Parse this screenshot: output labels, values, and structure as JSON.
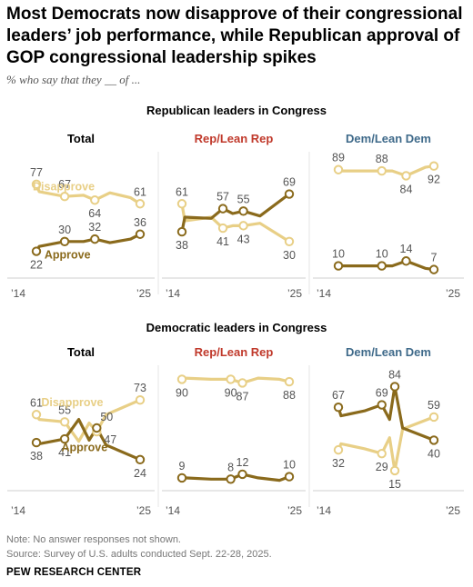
{
  "title": "Most Democrats now disapprove of their congressional leaders’ job performance, while Republican approval of GOP congressional leadership spikes",
  "subtitle": "% who say that they __ of ...",
  "note": "Note: No answer responses not shown.",
  "source": "Source: Survey of U.S. adults conducted Sept. 22-28, 2025.",
  "org": "PEW RESEARCH CENTER",
  "colors": {
    "disapprove": "#E8CF86",
    "approve": "#8A6A1C",
    "rep": "#C0392B",
    "dem": "#3F6A8A",
    "grid": "#CFCFCF"
  },
  "chart_data": [
    {
      "section": "Republican leaders in Congress",
      "panels": [
        {
          "title": "Total",
          "title_color": "#000000",
          "x_labels": [
            "’14",
            "’25"
          ],
          "series": [
            {
              "name": "Disapprove",
              "x": [
                2014,
                2014.3,
                2017,
                2019,
                2020.2,
                2021.8,
                2024,
                2025
              ],
              "values": [
                77,
                71,
                67,
                68,
                64,
                70,
                66,
                61
              ],
              "labeled_points": [
                {
                  "x": 2014,
                  "y": 77,
                  "label": "77",
                  "pos": "above"
                },
                {
                  "x": 2017,
                  "y": 67,
                  "label": "67",
                  "pos": "above"
                },
                {
                  "x": 2020.2,
                  "y": 64,
                  "label": "64",
                  "pos": "below"
                },
                {
                  "x": 2025,
                  "y": 61,
                  "label": "61",
                  "pos": "above"
                }
              ]
            },
            {
              "name": "Approve",
              "x": [
                2014,
                2014.3,
                2017,
                2019,
                2020.2,
                2021.8,
                2024,
                2025
              ],
              "values": [
                22,
                26,
                30,
                30,
                32,
                29,
                32,
                36
              ],
              "labeled_points": [
                {
                  "x": 2014,
                  "y": 22,
                  "label": "22",
                  "pos": "below"
                },
                {
                  "x": 2017,
                  "y": 30,
                  "label": "30",
                  "pos": "above"
                },
                {
                  "x": 2020.2,
                  "y": 32,
                  "label": "32",
                  "pos": "above"
                },
                {
                  "x": 2025,
                  "y": 36,
                  "label": "36",
                  "pos": "above"
                }
              ]
            }
          ],
          "inline_labels": [
            {
              "text": "Disapprove",
              "series": "Disapprove",
              "x": 2016.9,
              "y": 72
            },
            {
              "text": "Approve",
              "series": "Approve",
              "x": 2017.3,
              "y": 16
            }
          ]
        },
        {
          "title": "Rep/Lean Rep",
          "title_color": "#C0392B",
          "x_labels": [
            "’14",
            "’25"
          ],
          "series": [
            {
              "name": "Disapprove",
              "x": [
                2014,
                2014.3,
                2017,
                2018.2,
                2019.2,
                2020.3,
                2022,
                2025
              ],
              "values": [
                61,
                47,
                50,
                41,
                43,
                43,
                45,
                30
              ],
              "labeled_points": [
                {
                  "x": 2014,
                  "y": 61,
                  "label": "61",
                  "pos": "above"
                },
                {
                  "x": 2018.2,
                  "y": 41,
                  "label": "41",
                  "pos": "below"
                },
                {
                  "x": 2020.3,
                  "y": 43,
                  "label": "43",
                  "pos": "below"
                },
                {
                  "x": 2025,
                  "y": 30,
                  "label": "30",
                  "pos": "below"
                }
              ]
            },
            {
              "name": "Approve",
              "x": [
                2014,
                2014.3,
                2017,
                2018.2,
                2019.2,
                2020.3,
                2022,
                2025
              ],
              "values": [
                38,
                50,
                49,
                57,
                53,
                55,
                51,
                69
              ],
              "labeled_points": [
                {
                  "x": 2014,
                  "y": 38,
                  "label": "38",
                  "pos": "below"
                },
                {
                  "x": 2018.2,
                  "y": 57,
                  "label": "57",
                  "pos": "above"
                },
                {
                  "x": 2020.3,
                  "y": 55,
                  "label": "55",
                  "pos": "above"
                },
                {
                  "x": 2025,
                  "y": 69,
                  "label": "69",
                  "pos": "above"
                }
              ]
            }
          ]
        },
        {
          "title": "Dem/Lean Dem",
          "title_color": "#3F6A8A",
          "x_labels": [
            "’14",
            "’25"
          ],
          "series": [
            {
              "name": "Disapprove",
              "x": [
                2014,
                2014.3,
                2017,
                2019,
                2020.2,
                2021.8,
                2024,
                2025
              ],
              "values": [
                89,
                88,
                88,
                88,
                88,
                84,
                91,
                92
              ],
              "labeled_points": [
                {
                  "x": 2014,
                  "y": 89,
                  "label": "89",
                  "pos": "above"
                },
                {
                  "x": 2019,
                  "y": 88,
                  "label": "88",
                  "pos": "above"
                },
                {
                  "x": 2021.8,
                  "y": 84,
                  "label": "84",
                  "pos": "below"
                },
                {
                  "x": 2025,
                  "y": 92,
                  "label": "92",
                  "pos": "below"
                }
              ]
            },
            {
              "name": "Approve",
              "x": [
                2014,
                2014.3,
                2017,
                2019,
                2020.2,
                2021.8,
                2024,
                2025
              ],
              "values": [
                10,
                10,
                10,
                10,
                10,
                14,
                8,
                7
              ],
              "labeled_points": [
                {
                  "x": 2014,
                  "y": 10,
                  "label": "10",
                  "pos": "above"
                },
                {
                  "x": 2019,
                  "y": 10,
                  "label": "10",
                  "pos": "above"
                },
                {
                  "x": 2021.8,
                  "y": 14,
                  "label": "14",
                  "pos": "above"
                },
                {
                  "x": 2025,
                  "y": 7,
                  "label": "7",
                  "pos": "above"
                }
              ]
            }
          ]
        }
      ]
    },
    {
      "section": "Democratic leaders in Congress",
      "panels": [
        {
          "title": "Total",
          "title_color": "#000000",
          "x_labels": [
            "’14",
            "’25"
          ],
          "series": [
            {
              "name": "Disapprove",
              "x": [
                2014,
                2014.3,
                2017,
                2018.5,
                2019.6,
                2020.4,
                2021.4,
                2025
              ],
              "values": [
                61,
                57,
                55,
                39,
                54,
                47,
                61,
                73
              ],
              "labeled_points": [
                {
                  "x": 2014,
                  "y": 61,
                  "label": "61",
                  "pos": "above"
                },
                {
                  "x": 2017,
                  "y": 55,
                  "label": "55",
                  "pos": "above"
                },
                {
                  "x": 2020.4,
                  "y": 47,
                  "label": "47",
                  "pos": "right"
                },
                {
                  "x": 2025,
                  "y": 73,
                  "label": "73",
                  "pos": "above"
                }
              ]
            },
            {
              "name": "Approve",
              "x": [
                2014,
                2014.3,
                2017,
                2018.5,
                2019.6,
                2020.4,
                2021.4,
                2025
              ],
              "values": [
                38,
                37,
                41,
                57,
                40,
                50,
                36,
                24
              ],
              "labeled_points": [
                {
                  "x": 2014,
                  "y": 38,
                  "label": "38",
                  "pos": "below"
                },
                {
                  "x": 2017,
                  "y": 41,
                  "label": "41",
                  "pos": "below"
                },
                {
                  "x": 2020.4,
                  "y": 50,
                  "label": "50",
                  "pos": "above-right"
                },
                {
                  "x": 2025,
                  "y": 24,
                  "label": "24",
                  "pos": "below"
                }
              ]
            }
          ],
          "inline_labels": [
            {
              "text": "Disapprove",
              "series": "Disapprove",
              "x": 2017.8,
              "y": 68
            },
            {
              "text": "Approve",
              "series": "Approve",
              "x": 2019.1,
              "y": 31
            }
          ]
        },
        {
          "title": "Rep/Lean Rep",
          "title_color": "#C0392B",
          "x_labels": [
            "’14",
            "’25"
          ],
          "series": [
            {
              "name": "Disapprove",
              "x": [
                2014,
                2014.3,
                2017,
                2019,
                2020.2,
                2021.8,
                2024,
                2025
              ],
              "values": [
                90,
                91,
                90,
                90,
                87,
                91,
                90,
                88
              ],
              "labeled_points": [
                {
                  "x": 2014,
                  "y": 90,
                  "label": "90",
                  "pos": "below"
                },
                {
                  "x": 2019,
                  "y": 90,
                  "label": "90",
                  "pos": "below"
                },
                {
                  "x": 2020.2,
                  "y": 87,
                  "label": "87",
                  "pos": "below"
                },
                {
                  "x": 2025,
                  "y": 88,
                  "label": "88",
                  "pos": "below"
                }
              ]
            },
            {
              "name": "Approve",
              "x": [
                2014,
                2014.3,
                2017,
                2019,
                2020.2,
                2021.8,
                2024,
                2025
              ],
              "values": [
                9,
                9,
                8,
                8,
                12,
                9,
                7,
                10
              ],
              "labeled_points": [
                {
                  "x": 2014,
                  "y": 9,
                  "label": "9",
                  "pos": "above"
                },
                {
                  "x": 2019,
                  "y": 8,
                  "label": "8",
                  "pos": "above"
                },
                {
                  "x": 2020.2,
                  "y": 12,
                  "label": "12",
                  "pos": "above"
                },
                {
                  "x": 2025,
                  "y": 10,
                  "label": "10",
                  "pos": "above"
                }
              ]
            }
          ]
        },
        {
          "title": "Dem/Lean Dem",
          "title_color": "#3F6A8A",
          "x_labels": [
            "’14",
            "’25"
          ],
          "series": [
            {
              "name": "Disapprove",
              "x": [
                2014,
                2014.3,
                2017,
                2019,
                2019.9,
                2020.5,
                2021.4,
                2025
              ],
              "values": [
                32,
                37,
                33,
                29,
                42,
                15,
                49,
                59
              ],
              "labeled_points": [
                {
                  "x": 2014,
                  "y": 32,
                  "label": "32",
                  "pos": "below"
                },
                {
                  "x": 2019,
                  "y": 29,
                  "label": "29",
                  "pos": "below"
                },
                {
                  "x": 2020.5,
                  "y": 15,
                  "label": "15",
                  "pos": "below"
                },
                {
                  "x": 2025,
                  "y": 59,
                  "label": "59",
                  "pos": "above"
                }
              ]
            },
            {
              "name": "Approve",
              "x": [
                2014,
                2014.3,
                2017,
                2019,
                2019.9,
                2020.5,
                2021.4,
                2025
              ],
              "values": [
                67,
                60,
                64,
                69,
                57,
                84,
                50,
                40
              ],
              "labeled_points": [
                {
                  "x": 2014,
                  "y": 67,
                  "label": "67",
                  "pos": "above"
                },
                {
                  "x": 2019,
                  "y": 69,
                  "label": "69",
                  "pos": "above"
                },
                {
                  "x": 2020.5,
                  "y": 84,
                  "label": "84",
                  "pos": "above"
                },
                {
                  "x": 2025,
                  "y": 40,
                  "label": "40",
                  "pos": "below"
                }
              ]
            }
          ]
        }
      ]
    }
  ]
}
